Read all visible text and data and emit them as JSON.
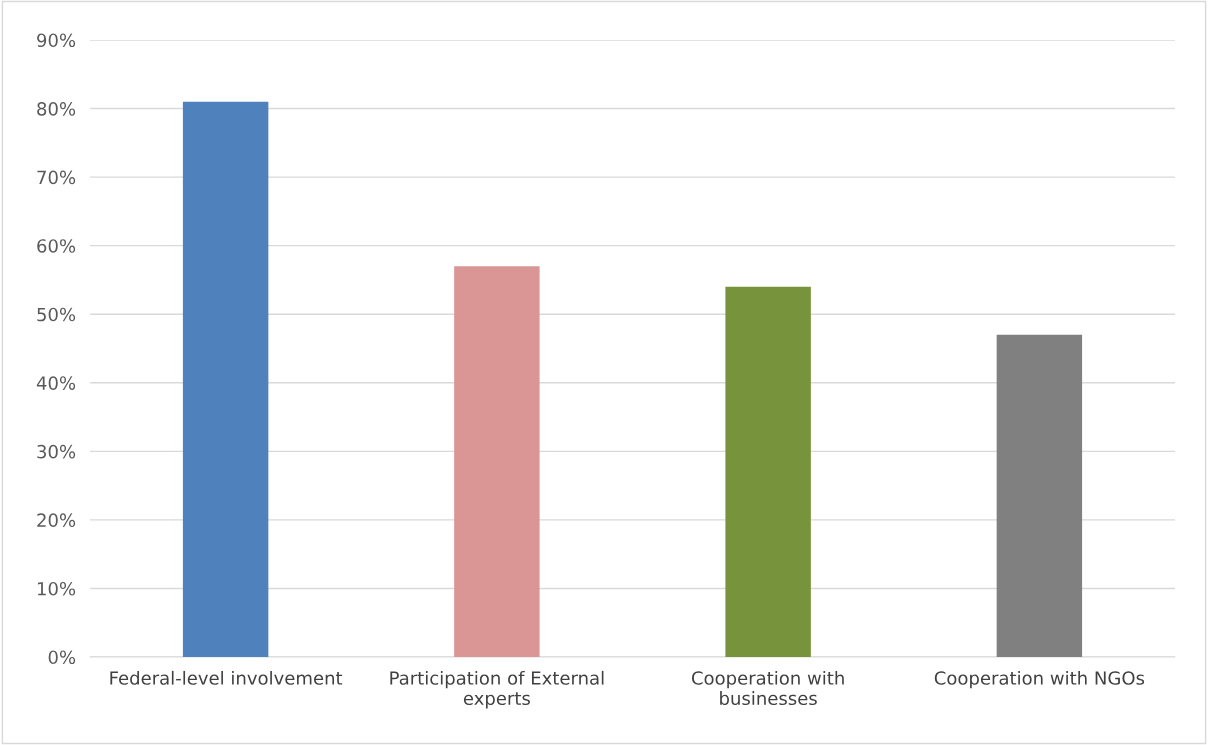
{
  "chart_data": {
    "type": "bar",
    "categories": [
      "Federal-level involvement",
      "Participation of External\nexperts",
      "Cooperation with\nbusinesses",
      "Cooperation with NGOs"
    ],
    "values": [
      81,
      57,
      54,
      47
    ],
    "colors": [
      "#4f81bd",
      "#d99694",
      "#77933c",
      "#808080"
    ],
    "ylim": [
      0,
      90
    ],
    "yticks": [
      {
        "value": 0,
        "label": "0%"
      },
      {
        "value": 10,
        "label": "10%"
      },
      {
        "value": 20,
        "label": "20%"
      },
      {
        "value": 30,
        "label": "30%"
      },
      {
        "value": 40,
        "label": "40%"
      },
      {
        "value": 50,
        "label": "50%"
      },
      {
        "value": 60,
        "label": "60%"
      },
      {
        "value": 70,
        "label": "70%"
      },
      {
        "value": 80,
        "label": "80%"
      },
      {
        "value": 90,
        "label": "90%"
      }
    ],
    "grid": "y",
    "legend": false
  }
}
